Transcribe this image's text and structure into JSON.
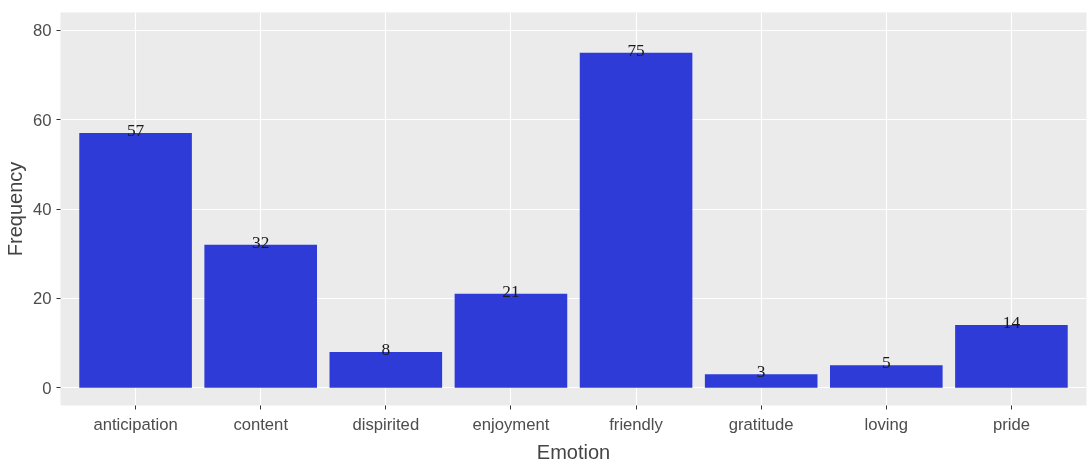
{
  "chart_data": {
    "type": "bar",
    "xlabel": "Emotion",
    "ylabel": "Frequency",
    "categories": [
      "anticipation",
      "content",
      "dispirited",
      "enjoyment",
      "friendly",
      "gratitude",
      "loving",
      "pride"
    ],
    "values": [
      57,
      32,
      8,
      21,
      75,
      3,
      5,
      14
    ],
    "color": "#2e3bd7",
    "ylim": [
      -4,
      84
    ],
    "yticks": [
      0,
      20,
      40,
      60,
      80
    ],
    "grid": true,
    "data_labels": true
  }
}
